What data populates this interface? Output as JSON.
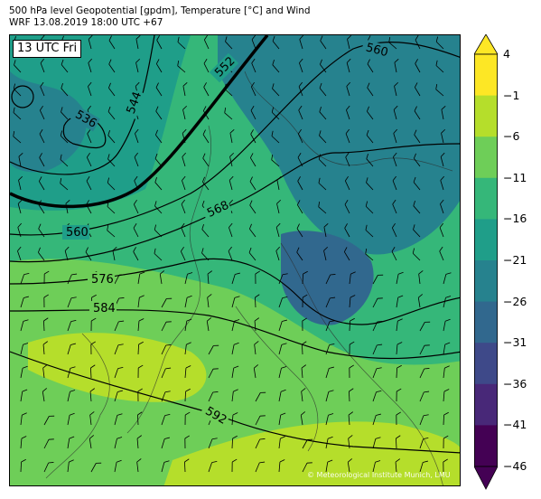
{
  "header": {
    "line1": "500 hPa level Geopotential [gpdm], Temperature [°C] and Wind",
    "line2": "WRF 13.08.2019 18:00 UTC +67"
  },
  "map": {
    "time_label": "13 UTC Fri",
    "copyright": "© Meteorological Institute Munich, LMU",
    "contour_labels": {
      "c536": "536",
      "c544": "544",
      "c552": "552",
      "c560_top": "560",
      "c560_left": "560",
      "c568": "568",
      "c576": "576",
      "c584": "584",
      "c592": "592"
    }
  },
  "colorbar": {
    "ticks": [
      "4",
      "−1",
      "−6",
      "−11",
      "−16",
      "−21",
      "−26",
      "−31",
      "−36",
      "−41",
      "−46"
    ],
    "colors": [
      "#fde725",
      "#b5de2b",
      "#6ece58",
      "#35b779",
      "#1f9e89",
      "#26828e",
      "#31688e",
      "#3e4989",
      "#482878",
      "#440154"
    ],
    "over_color": "#fde725",
    "under_color": "#440154"
  }
}
